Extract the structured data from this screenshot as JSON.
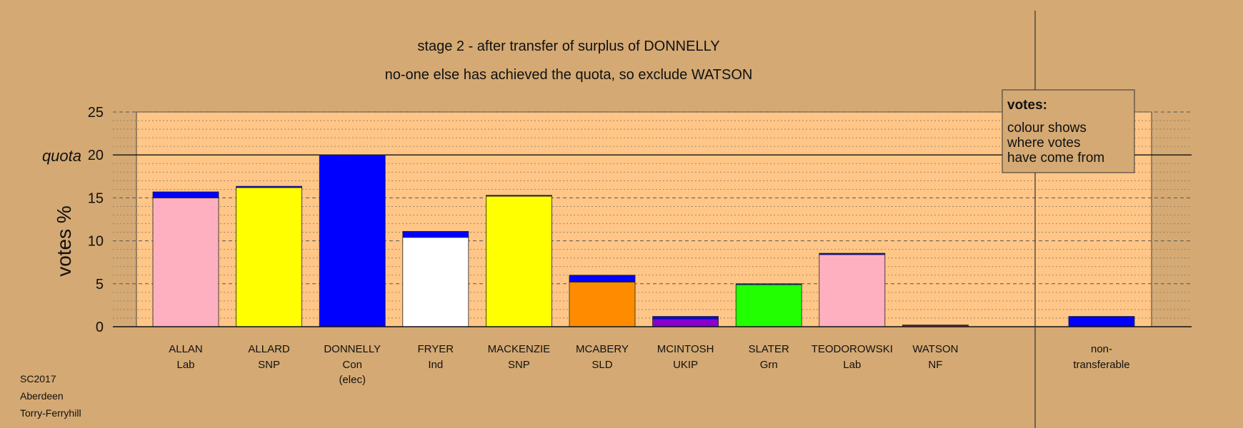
{
  "chart_data": {
    "type": "bar",
    "title": "stage 2 - after transfer of surplus of DONNELLY",
    "subtitle": "no-one else has achieved the quota, so exclude WATSON",
    "ylabel": "votes %",
    "quota_label": "quota",
    "quota": 20,
    "ylim": [
      0,
      25
    ],
    "yticks": [
      0,
      5,
      10,
      15,
      20,
      25
    ],
    "grid": true,
    "categories": [
      {
        "name": "ALLAN",
        "party": "Lab",
        "note": ""
      },
      {
        "name": "ALLARD",
        "party": "SNP",
        "note": ""
      },
      {
        "name": "DONNELLY",
        "party": "Con",
        "note": "(elec)"
      },
      {
        "name": "FRYER",
        "party": "Ind",
        "note": ""
      },
      {
        "name": "MACKENZIE",
        "party": "SNP",
        "note": ""
      },
      {
        "name": "MCABERY",
        "party": "SLD",
        "note": ""
      },
      {
        "name": "MCINTOSH",
        "party": "UKIP",
        "note": ""
      },
      {
        "name": "SLATER",
        "party": "Grn",
        "note": ""
      },
      {
        "name": "TEODOROWSKI",
        "party": "Lab",
        "note": ""
      },
      {
        "name": "WATSON",
        "party": "NF",
        "note": ""
      }
    ],
    "bars": [
      {
        "segments": [
          {
            "value": 15.0,
            "color": "#ffb0c0"
          },
          {
            "value": 0.7,
            "color": "#0000ff"
          }
        ]
      },
      {
        "segments": [
          {
            "value": 16.2,
            "color": "#ffff00"
          },
          {
            "value": 0.15,
            "color": "#0000ff"
          }
        ]
      },
      {
        "segments": [
          {
            "value": 20.0,
            "color": "#0000ff"
          }
        ]
      },
      {
        "segments": [
          {
            "value": 10.4,
            "color": "#ffffff"
          },
          {
            "value": 0.7,
            "color": "#0000ff"
          }
        ]
      },
      {
        "segments": [
          {
            "value": 15.2,
            "color": "#ffff00"
          },
          {
            "value": 0.1,
            "color": "#0000ff"
          }
        ]
      },
      {
        "segments": [
          {
            "value": 5.2,
            "color": "#ff8c00"
          },
          {
            "value": 0.8,
            "color": "#0000ff"
          }
        ]
      },
      {
        "segments": [
          {
            "value": 0.9,
            "color": "#8800cc"
          },
          {
            "value": 0.3,
            "color": "#0000ff"
          }
        ]
      },
      {
        "segments": [
          {
            "value": 4.9,
            "color": "#22ff00"
          },
          {
            "value": 0.1,
            "color": "#0000ff"
          }
        ]
      },
      {
        "segments": [
          {
            "value": 8.4,
            "color": "#ffb0c0"
          },
          {
            "value": 0.15,
            "color": "#0000ff"
          }
        ]
      },
      {
        "segments": [
          {
            "value": 0.15,
            "color": "#cc3344"
          },
          {
            "value": 0.05,
            "color": "#0000ff"
          }
        ]
      }
    ],
    "nontransferable": {
      "label_line1": "non-",
      "label_line2": "transferable",
      "value": 1.2,
      "color": "#0000ff"
    },
    "legend": {
      "title": "votes:",
      "lines": [
        "colour shows",
        "where votes",
        "have come from"
      ],
      "position": "top-right"
    },
    "colors": {
      "background": "#d4a973",
      "plot_area": "#ffc687"
    }
  },
  "footer": {
    "line1": "SC2017",
    "line2": "Aberdeen",
    "line3": "Torry-Ferryhill"
  }
}
